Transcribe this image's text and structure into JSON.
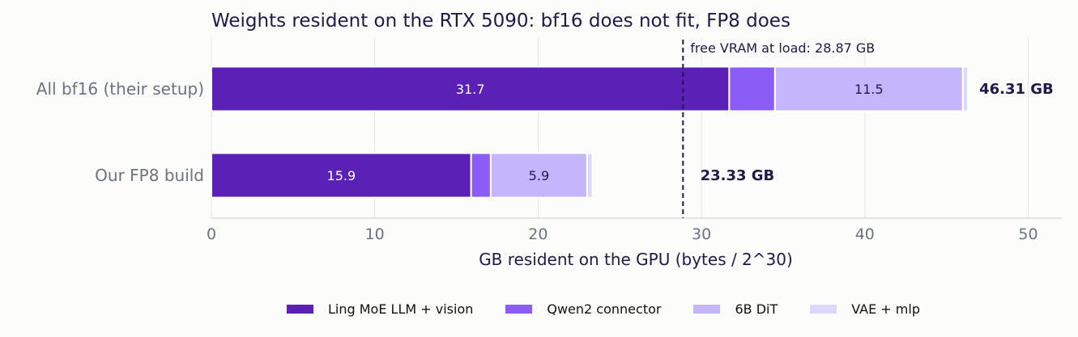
{
  "chart_data": {
    "type": "bar",
    "orientation": "horizontal",
    "stacked": true,
    "title": "Weights resident on the RTX 5090: bf16 does not fit, FP8 does",
    "xlabel": "GB resident on the GPU (bytes / 2^30)",
    "ylabel": "",
    "xlim": [
      0,
      52
    ],
    "xticks": [
      0,
      10,
      20,
      30,
      40,
      50
    ],
    "grid": "x",
    "legend_position": "bottom",
    "categories": [
      "All bf16 (their setup)",
      "Our FP8 build"
    ],
    "series": [
      {
        "name": "Ling MoE LLM + vision",
        "color": "#5b21b6",
        "label_color": "#ffffff",
        "values": [
          31.7,
          15.9
        ],
        "labels": [
          "31.7",
          "15.9"
        ]
      },
      {
        "name": "Qwen2 connector",
        "color": "#8b5cf6",
        "label_color": "#1e1b4b",
        "values": [
          2.8,
          1.2
        ],
        "labels": [
          "",
          ""
        ]
      },
      {
        "name": "6B DiT",
        "color": "#c4b5fd",
        "label_color": "#1e1b4b",
        "values": [
          11.5,
          5.9
        ],
        "labels": [
          "11.5",
          "5.9"
        ]
      },
      {
        "name": "VAE + mlp",
        "color": "#ddd6fe",
        "label_color": "#1e1b4b",
        "values": [
          0.31,
          0.33
        ],
        "labels": [
          "",
          ""
        ]
      }
    ],
    "totals": [
      "46.31 GB",
      "23.33 GB"
    ],
    "reference_line": {
      "value": 28.87,
      "label": "free VRAM at load: 28.87 GB",
      "color": "#1e1b4b"
    }
  }
}
